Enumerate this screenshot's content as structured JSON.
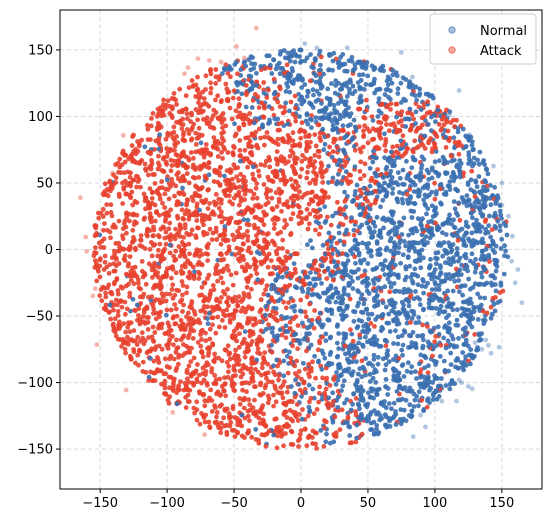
{
  "chart_data": {
    "type": "scatter",
    "title": "",
    "xlabel": "",
    "ylabel": "",
    "xlim": [
      -180,
      180
    ],
    "ylim": [
      -180,
      180
    ],
    "xticks": [
      -150,
      -100,
      -50,
      0,
      50,
      100,
      150
    ],
    "yticks": [
      -150,
      -100,
      -50,
      0,
      50,
      100,
      150
    ],
    "x_tick_labels": [
      "−150",
      "−100",
      "−50",
      "0",
      "50",
      "100",
      "150"
    ],
    "y_tick_labels": [
      "−150",
      "−100",
      "−50",
      "0",
      "50",
      "100",
      "150"
    ],
    "grid": true,
    "legend_position": "top-right",
    "series": [
      {
        "name": "Normal",
        "color": "#3a6fb0",
        "region_description": "dense cluster on the right half of a disk of radius ~155, plus a band through the center-top",
        "sample_points": [
          [
            50,
            10
          ],
          [
            80,
            0
          ],
          [
            100,
            -20
          ],
          [
            120,
            20
          ],
          [
            140,
            40
          ],
          [
            60,
            -40
          ],
          [
            90,
            -80
          ],
          [
            30,
            -100
          ],
          [
            10,
            -140
          ],
          [
            50,
            110
          ],
          [
            70,
            90
          ],
          [
            20,
            60
          ],
          [
            110,
            -60
          ],
          [
            130,
            -30
          ],
          [
            150,
            -10
          ],
          [
            40,
            -120
          ],
          [
            75,
            -110
          ],
          [
            95,
            50
          ],
          [
            60,
            30
          ],
          [
            25,
            -60
          ]
        ]
      },
      {
        "name": "Attack",
        "color": "#e8412f",
        "region_description": "dense cluster on the left half of the disk, plus an arc near the top center",
        "sample_points": [
          [
            -80,
            0
          ],
          [
            -60,
            -60
          ],
          [
            -100,
            50
          ],
          [
            -120,
            -20
          ],
          [
            -40,
            -100
          ],
          [
            -70,
            100
          ],
          [
            -30,
            130
          ],
          [
            -10,
            140
          ],
          [
            -130,
            30
          ],
          [
            -90,
            -90
          ],
          [
            -50,
            60
          ],
          [
            -20,
            -40
          ],
          [
            0,
            100
          ],
          [
            20,
            80
          ],
          [
            40,
            -20
          ],
          [
            80,
            60
          ],
          [
            100,
            90
          ],
          [
            60,
            120
          ],
          [
            -110,
            -60
          ],
          [
            -60,
            20
          ]
        ]
      }
    ]
  }
}
